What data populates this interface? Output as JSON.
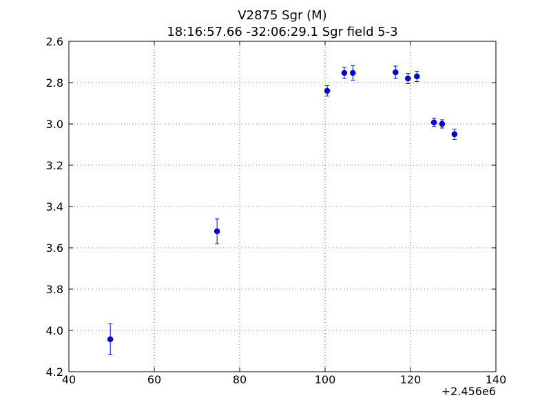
{
  "chart_data": {
    "type": "errorbar",
    "title": "V2875 Sgr  (M)",
    "subtitle": "18:16:57.66 -32:06:29.1 Sgr field 5-3",
    "x_offset_label": "+2.456e6",
    "x": [
      49.7,
      74.7,
      100.5,
      104.5,
      106.5,
      116.5,
      119.4,
      121.5,
      125.5,
      127.4,
      130.3
    ],
    "values": [
      4.043,
      3.52,
      2.84,
      2.753,
      2.753,
      2.75,
      2.78,
      2.77,
      2.993,
      3.0,
      3.05
    ],
    "errors": [
      0.075,
      0.06,
      0.025,
      0.027,
      0.035,
      0.03,
      0.025,
      0.025,
      0.02,
      0.02,
      0.025
    ],
    "color": "#0000ff",
    "xlim": [
      40,
      140
    ],
    "xticks": [
      40,
      60,
      80,
      100,
      120,
      140
    ],
    "ylim": [
      2.6,
      4.2
    ],
    "invert_y": true,
    "yticks": [
      2.6,
      2.8,
      {
        "value": 3.0,
        "label": "3.0"
      },
      3.2,
      3.4,
      3.6,
      3.8,
      {
        "value": 4.0,
        "label": "4.0"
      },
      4.2
    ],
    "grid": true
  }
}
